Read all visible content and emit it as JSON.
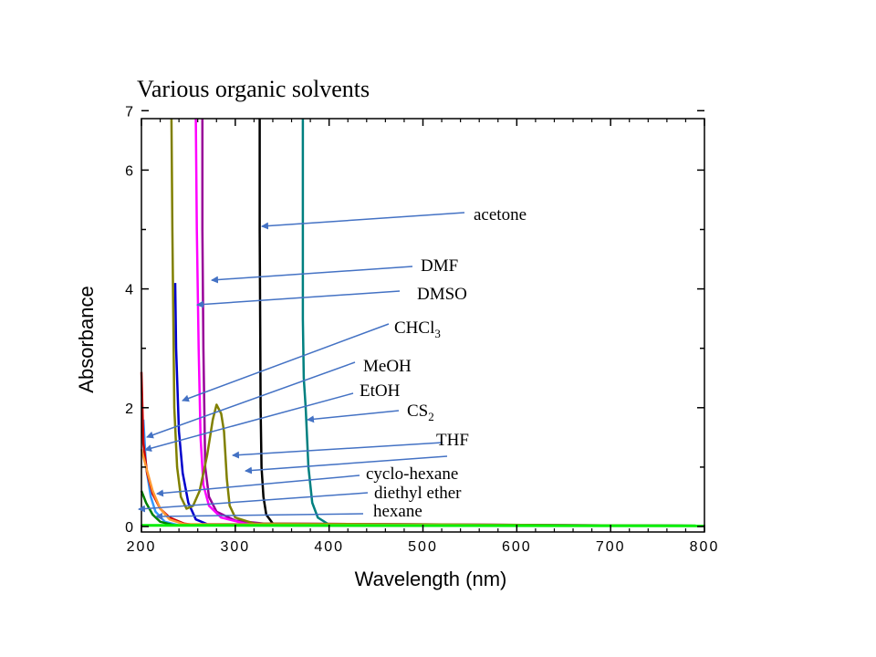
{
  "chart_data": {
    "type": "line",
    "title": "Various organic solvents",
    "xlabel": "Wavelength (nm)",
    "ylabel": "Absorbance",
    "xlim": [
      200,
      800
    ],
    "ylim": [
      0,
      7
    ],
    "x_ticks": [
      200,
      300,
      400,
      500,
      600,
      700,
      800
    ],
    "x_tick_labels": [
      "200",
      "300",
      "400",
      "500",
      "600",
      "700",
      "800"
    ],
    "y_ticks": [
      0,
      2,
      4,
      6,
      7
    ],
    "y_tick_labels": [
      "0",
      "2",
      "4",
      "6",
      "7"
    ],
    "grid": false,
    "series": [
      {
        "name": "acetone",
        "color": "#000000",
        "points": [
          [
            326,
            7.1
          ],
          [
            326,
            5
          ],
          [
            327,
            2
          ],
          [
            328,
            1
          ],
          [
            330,
            0.5
          ],
          [
            333,
            0.2
          ],
          [
            340,
            0.05
          ],
          [
            400,
            0.02
          ],
          [
            800,
            0.01
          ]
        ]
      },
      {
        "name": "DMF",
        "color": "#990099",
        "points": [
          [
            265,
            7.1
          ],
          [
            265,
            5
          ],
          [
            266,
            3
          ],
          [
            268,
            1
          ],
          [
            272,
            0.5
          ],
          [
            280,
            0.25
          ],
          [
            300,
            0.1
          ],
          [
            330,
            0.05
          ],
          [
            800,
            0.01
          ]
        ]
      },
      {
        "name": "DMSO",
        "color": "#ff00ff",
        "points": [
          [
            258,
            7.1
          ],
          [
            259,
            5
          ],
          [
            261,
            3
          ],
          [
            263,
            1.5
          ],
          [
            266,
            0.7
          ],
          [
            272,
            0.35
          ],
          [
            285,
            0.15
          ],
          [
            310,
            0.05
          ],
          [
            800,
            0.01
          ]
        ]
      },
      {
        "name": "CHCl3",
        "color": "#0000cc",
        "points": [
          [
            236,
            4.1
          ],
          [
            237,
            3
          ],
          [
            240,
            1.6
          ],
          [
            244,
            0.9
          ],
          [
            250,
            0.4
          ],
          [
            258,
            0.12
          ],
          [
            270,
            0.04
          ],
          [
            800,
            0.01
          ]
        ]
      },
      {
        "name": "MeOH",
        "color": "#3399ff",
        "points": [
          [
            202,
            1.8
          ],
          [
            205,
            1.0
          ],
          [
            210,
            0.5
          ],
          [
            215,
            0.25
          ],
          [
            225,
            0.08
          ],
          [
            240,
            0.02
          ],
          [
            800,
            0.01
          ]
        ]
      },
      {
        "name": "EtOH",
        "color": "#cc0000",
        "points": [
          [
            200,
            2.6
          ],
          [
            202,
            1.4
          ],
          [
            206,
            0.9
          ],
          [
            212,
            0.55
          ],
          [
            220,
            0.3
          ],
          [
            230,
            0.15
          ],
          [
            245,
            0.05
          ],
          [
            260,
            0.02
          ],
          [
            800,
            0.01
          ]
        ]
      },
      {
        "name": "CS2",
        "color": "#008080",
        "points": [
          [
            372,
            7.1
          ],
          [
            372,
            3.5
          ],
          [
            373,
            2.5
          ],
          [
            375,
            2.0
          ],
          [
            378,
            1.0
          ],
          [
            382,
            0.4
          ],
          [
            388,
            0.15
          ],
          [
            400,
            0.03
          ],
          [
            800,
            0.01
          ]
        ]
      },
      {
        "name": "THF",
        "color": "#808000",
        "points": [
          [
            232,
            7.1
          ],
          [
            233,
            5
          ],
          [
            235,
            2
          ],
          [
            238,
            1
          ],
          [
            242,
            0.5
          ],
          [
            248,
            0.3
          ],
          [
            255,
            0.35
          ],
          [
            262,
            0.6
          ],
          [
            270,
            1.2
          ],
          [
            276,
            1.8
          ],
          [
            280,
            2.05
          ],
          [
            285,
            1.9
          ],
          [
            288,
            1.6
          ],
          [
            291,
            0.8
          ],
          [
            294,
            0.35
          ],
          [
            300,
            0.15
          ],
          [
            320,
            0.05
          ],
          [
            800,
            0.01
          ]
        ]
      },
      {
        "name": "cyclo-hexane",
        "color": "#ff9933",
        "points": [
          [
            200,
            1.3
          ],
          [
            205,
            1.0
          ],
          [
            212,
            0.6
          ],
          [
            220,
            0.3
          ],
          [
            230,
            0.12
          ],
          [
            245,
            0.04
          ],
          [
            800,
            0.01
          ]
        ]
      },
      {
        "name": "diethyl ether",
        "color": "#008000",
        "points": [
          [
            200,
            0.6
          ],
          [
            205,
            0.4
          ],
          [
            212,
            0.2
          ],
          [
            220,
            0.08
          ],
          [
            235,
            0.02
          ],
          [
            800,
            0.01
          ]
        ]
      },
      {
        "name": "hexane",
        "color": "#00ee00",
        "points": [
          [
            200,
            0.02
          ],
          [
            800,
            0.01
          ]
        ]
      }
    ],
    "annotations": [
      {
        "label": "acetone",
        "sub": ""
      },
      {
        "label": "DMF",
        "sub": ""
      },
      {
        "label": "DMSO",
        "sub": ""
      },
      {
        "label": "CHCl",
        "sub": "3"
      },
      {
        "label": "MeOH",
        "sub": ""
      },
      {
        "label": "EtOH",
        "sub": ""
      },
      {
        "label": "CS",
        "sub": "2"
      },
      {
        "label": "THF",
        "sub": ""
      },
      {
        "label": "cyclo-hexane",
        "sub": ""
      },
      {
        "label": "diethyl ether",
        "sub": ""
      },
      {
        "label": "hexane",
        "sub": ""
      }
    ],
    "arrow_color": "#4472c4"
  }
}
